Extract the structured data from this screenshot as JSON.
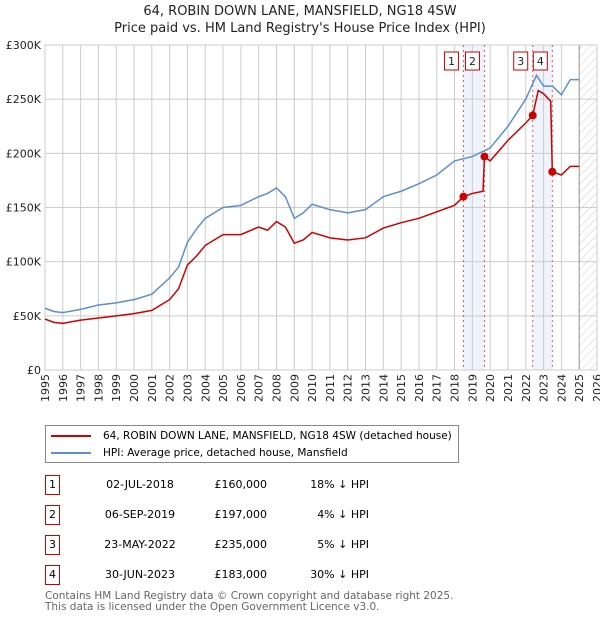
{
  "chart_data": {
    "type": "line",
    "title": "64, ROBIN DOWN LANE, MANSFIELD, NG18 4SW",
    "subtitle": "Price paid vs. HM Land Registry's House Price Index (HPI)",
    "xlim": [
      1995,
      2026
    ],
    "ylim": [
      0,
      300000
    ],
    "x_ticks": [
      "1995",
      "1996",
      "1997",
      "1998",
      "1999",
      "2000",
      "2001",
      "2002",
      "2003",
      "2004",
      "2005",
      "2006",
      "2007",
      "2008",
      "2009",
      "2010",
      "2011",
      "2012",
      "2013",
      "2014",
      "2015",
      "2016",
      "2017",
      "2018",
      "2019",
      "2020",
      "2021",
      "2022",
      "2023",
      "2024",
      "2025",
      "2026"
    ],
    "y_ticks": [
      {
        "v": 0,
        "label": "£0"
      },
      {
        "v": 50000,
        "label": "£50K"
      },
      {
        "v": 100000,
        "label": "£100K"
      },
      {
        "v": 150000,
        "label": "£150K"
      },
      {
        "v": 200000,
        "label": "£200K"
      },
      {
        "v": 250000,
        "label": "£250K"
      },
      {
        "v": 300000,
        "label": "£300K"
      }
    ],
    "grid": true,
    "forecast_from": 2025.0,
    "series": [
      {
        "name": "64, ROBIN DOWN LANE, MANSFIELD, NG18 4SW (detached house)",
        "color": "#cc0000",
        "x": [
          1995,
          1995.5,
          1996,
          1997,
          1998,
          1999,
          2000,
          2001,
          2002,
          2002.5,
          2003,
          2003.5,
          2004,
          2005,
          2006,
          2007,
          2007.5,
          2008,
          2008.5,
          2009,
          2009.5,
          2010,
          2011,
          2012,
          2013,
          2014,
          2015,
          2016,
          2017,
          2018,
          2018.5,
          2019,
          2019.6,
          2019.68,
          2020,
          2021,
          2022,
          2022.39,
          2022.7,
          2023,
          2023.4,
          2023.49,
          2024,
          2024.5,
          2025
        ],
        "y": [
          47000,
          44000,
          43000,
          46000,
          48000,
          50000,
          52000,
          55000,
          65000,
          75000,
          97000,
          105000,
          115000,
          125000,
          125000,
          132000,
          129000,
          137000,
          132000,
          117000,
          120000,
          127000,
          122000,
          120000,
          122000,
          131000,
          136000,
          140000,
          146000,
          152000,
          160000,
          163000,
          165000,
          197000,
          193000,
          212000,
          228000,
          235000,
          258000,
          255000,
          248000,
          183000,
          180000,
          188000,
          188000
        ]
      },
      {
        "name": "HPI: Average price, detached house, Mansfield",
        "color": "#5b8fd4",
        "x": [
          1995,
          1995.5,
          1996,
          1997,
          1998,
          1999,
          2000,
          2001,
          2002,
          2002.5,
          2003,
          2003.5,
          2004,
          2005,
          2006,
          2007,
          2007.5,
          2008,
          2008.5,
          2009,
          2009.5,
          2010,
          2011,
          2012,
          2013,
          2014,
          2015,
          2016,
          2017,
          2018,
          2019,
          2020,
          2021,
          2022,
          2022.6,
          2023,
          2023.5,
          2024,
          2024.5,
          2025
        ],
        "y": [
          57000,
          54000,
          53000,
          56000,
          60000,
          62000,
          65000,
          70000,
          85000,
          95000,
          118000,
          130000,
          140000,
          150000,
          152000,
          160000,
          163000,
          168000,
          160000,
          140000,
          145000,
          153000,
          148000,
          145000,
          148000,
          160000,
          165000,
          172000,
          180000,
          193000,
          197000,
          205000,
          225000,
          250000,
          272000,
          262000,
          262000,
          254000,
          268000,
          268000
        ]
      }
    ],
    "sales": [
      {
        "n": "1",
        "x": 2018.5,
        "y": 160000
      },
      {
        "n": "2",
        "x": 2019.68,
        "y": 197000
      },
      {
        "n": "3",
        "x": 2022.39,
        "y": 235000
      },
      {
        "n": "4",
        "x": 2023.49,
        "y": 183000
      }
    ],
    "shaded_spans": [
      [
        2018.5,
        2019.68
      ],
      [
        2022.39,
        2023.49
      ]
    ]
  },
  "legend": {
    "red": "64, ROBIN DOWN LANE, MANSFIELD, NG18 4SW (detached house)",
    "blue": "HPI: Average price, detached house, Mansfield"
  },
  "table": [
    {
      "n": "1",
      "date": "02-JUL-2018",
      "price": "£160,000",
      "diff": "18% ↓ HPI"
    },
    {
      "n": "2",
      "date": "06-SEP-2019",
      "price": "£197,000",
      "diff": "4% ↓ HPI"
    },
    {
      "n": "3",
      "date": "23-MAY-2022",
      "price": "£235,000",
      "diff": "5% ↓ HPI"
    },
    {
      "n": "4",
      "date": "30-JUN-2023",
      "price": "£183,000",
      "diff": "30% ↓ HPI"
    }
  ],
  "footer": {
    "line1": "Contains HM Land Registry data © Crown copyright and database right 2025.",
    "line2": "This data is licensed under the Open Government Licence v3.0."
  }
}
